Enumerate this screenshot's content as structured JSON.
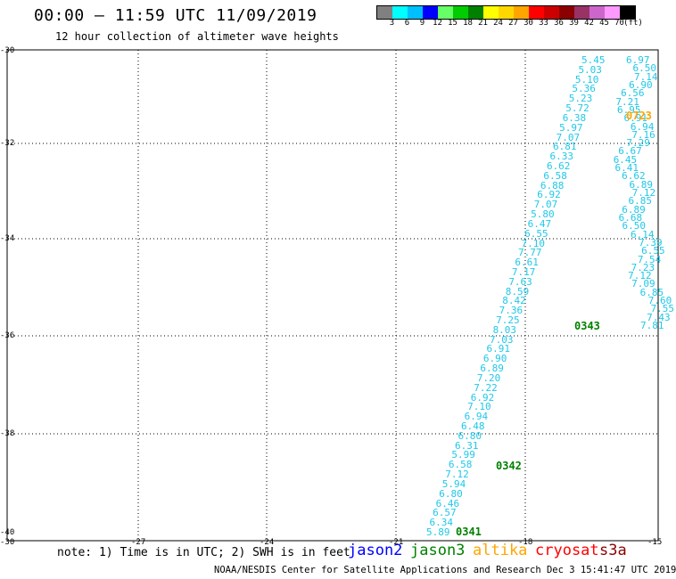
{
  "header": {
    "title": "00:00 – 11:59 UTC 11/09/2019",
    "subtitle": "12 hour collection of altimeter wave heights"
  },
  "legend": {
    "unit": "(ft)",
    "colors": [
      "#808080",
      "#00ffff",
      "#00bfff",
      "#0000ff",
      "#66ff66",
      "#00cc00",
      "#008000",
      "#ffff00",
      "#ffd700",
      "#ffa500",
      "#ff0000",
      "#cc0000",
      "#8b0000",
      "#993366",
      "#cc66cc",
      "#ff99ff",
      "#000000"
    ],
    "labels": [
      "3",
      "6",
      "9",
      "12",
      "15",
      "18",
      "21",
      "24",
      "27",
      "30",
      "33",
      "36",
      "39",
      "42",
      "45",
      "70"
    ]
  },
  "axes": {
    "lat_labels": [
      "-30",
      "-32",
      "-34",
      "-36",
      "-38",
      "-40"
    ],
    "lon_labels": [
      "-30",
      "-27",
      "-24",
      "-21",
      "-18",
      "-15"
    ]
  },
  "track1": {
    "color": "#20c8e8",
    "values": [
      "5.45",
      "5.03",
      "5.10",
      "5.36",
      "5.23",
      "5.72",
      "6.38",
      "5.97",
      "7.07",
      "6.81",
      "6.33",
      "6.62",
      "6.58",
      "6.88",
      "6.92",
      "7.07",
      "5.80",
      "6.47",
      "6.55",
      "7.10",
      "7.77",
      "6.61",
      "7.17",
      "7.63",
      "8.59",
      "8.42",
      "7.36",
      "7.25",
      "8.03",
      "7.03",
      "6.91",
      "6.90",
      "6.89",
      "7.20",
      "7.22",
      "6.92",
      "7.10",
      "6.94",
      "6.48",
      "6.80",
      "6.31",
      "5.99",
      "6.58",
      "7.12",
      "5.94",
      "6.80",
      "6.46",
      "6.57",
      "6.34",
      "5.89"
    ],
    "passes": [
      "0343",
      "0342",
      "0341"
    ],
    "pass_color": "#008000"
  },
  "track2": {
    "color": "#20c8e8",
    "values": [
      "6.97",
      "6.50",
      "7.14",
      "6.90",
      "6.56",
      "7.21",
      "6.95",
      "6.91",
      "6.94",
      "7.16",
      "7.29",
      "6.67",
      "6.45",
      "6.41",
      "6.62",
      "6.89",
      "7.12",
      "6.85",
      "6.89",
      "6.68",
      "6.50",
      "6.14",
      "7.39",
      "6.55",
      "7.54",
      "7.23",
      "7.12",
      "7.09",
      "6.85",
      "7.60",
      "7.55",
      "7.43",
      "7.81"
    ],
    "passes": [
      "0723"
    ],
    "pass_color": "#ffa500"
  },
  "footer": {
    "note": "note: 1) Time is in UTC; 2) SWH is in feet",
    "credit": "NOAA/NESDIS Center for Satellite Applications and Research    Dec  3 15:41:47 UTC 2019",
    "satellites": [
      {
        "name": "jason2",
        "color": "#0000ff"
      },
      {
        "name": "jason3",
        "color": "#008000"
      },
      {
        "name": "altika",
        "color": "#ffa500"
      },
      {
        "name": "cryosat",
        "color": "#ff0000"
      },
      {
        "name": "s3a",
        "color": "#8b0000"
      }
    ]
  }
}
